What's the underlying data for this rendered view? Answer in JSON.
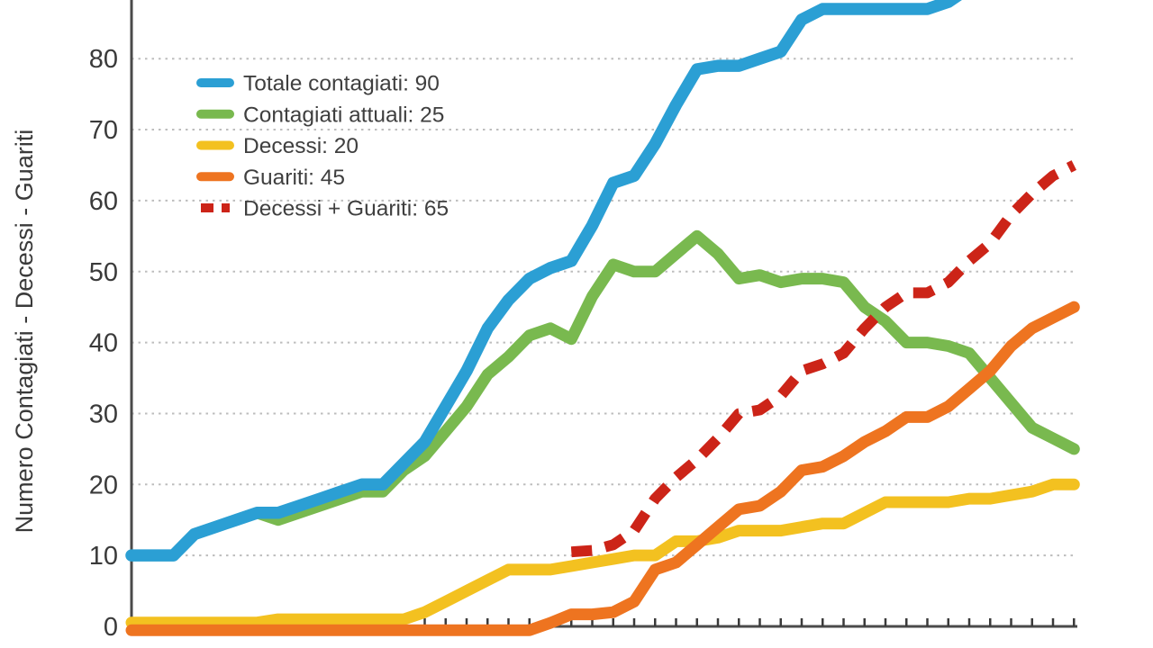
{
  "page": {
    "background": "#ffffff",
    "text_color": "#3a3a3a",
    "axis_color": "#4a4a4a",
    "grid_color": "#bdbdbd"
  },
  "chart_data": {
    "type": "line",
    "title": "",
    "xlabel": "",
    "ylabel": "Numero Contagiati - Decessi - Guariti",
    "ylim": [
      0,
      90
    ],
    "y_ticks": [
      0,
      10,
      20,
      30,
      40,
      50,
      60,
      70,
      80
    ],
    "grid": "horizontal-dotted",
    "legend_position": "upper-left",
    "x_axis": {
      "tick_count": 46,
      "labels_visible": false,
      "description": "46 daily data points; x tick labels are cropped out of the screenshot"
    },
    "series": [
      {
        "name": "Totale contagiati",
        "legend_label": "Totale contagiati: 90",
        "color": "#2b9fd4",
        "style": "solid",
        "final_value": 90,
        "values": [
          10,
          10,
          10,
          13,
          14,
          15,
          16,
          16,
          17,
          18,
          19,
          20,
          20,
          23,
          26,
          31,
          36,
          42,
          46,
          49,
          50.5,
          51.5,
          56.5,
          62.5,
          63.5,
          68,
          73.5,
          78.5,
          79,
          79,
          80,
          81,
          85.5,
          87,
          87,
          87,
          87,
          87,
          87,
          88,
          90,
          90,
          90,
          90,
          90,
          90
        ]
      },
      {
        "name": "Contagiati attuali",
        "legend_label": "Contagiati attuali: 25",
        "color": "#79b94f",
        "style": "solid",
        "final_value": 25,
        "values": [
          10,
          10,
          10,
          13,
          14,
          15,
          16,
          15,
          16,
          17,
          18,
          19,
          19,
          22,
          24,
          27.5,
          31,
          35.5,
          38,
          41,
          42,
          40.5,
          46.5,
          51,
          50,
          50,
          52.5,
          55,
          52.5,
          49,
          49.5,
          48.5,
          49,
          49,
          48.5,
          45,
          43,
          40,
          40,
          39.5,
          38.5,
          35,
          31.5,
          28,
          26.5,
          25
        ]
      },
      {
        "name": "Decessi",
        "legend_label": "Decessi: 20",
        "color": "#f3c120",
        "style": "solid",
        "final_value": 20,
        "values": [
          0,
          0,
          0,
          0,
          0,
          0,
          0,
          1,
          1,
          1,
          1,
          1,
          1,
          1,
          2,
          3.5,
          5,
          6.5,
          8,
          8,
          8,
          8.5,
          9,
          9.5,
          10,
          10,
          12,
          12,
          12.5,
          13.5,
          13.5,
          13.5,
          14,
          14.5,
          14.5,
          16,
          17.5,
          17.5,
          17.5,
          17.5,
          18,
          18,
          18.5,
          19,
          20,
          20
        ]
      },
      {
        "name": "Guariti",
        "legend_label": "Guariti: 45",
        "color": "#ee7420",
        "style": "solid",
        "final_value": 45,
        "values": [
          0,
          0,
          0,
          0,
          0,
          0,
          0,
          0,
          0,
          0,
          0,
          0,
          0,
          0,
          0,
          0,
          0,
          0,
          0,
          0,
          0.5,
          1.7,
          1.7,
          2,
          3.5,
          8,
          9,
          11.5,
          14,
          16.5,
          17,
          19,
          22,
          22.5,
          24,
          26,
          27.5,
          29.5,
          29.5,
          31,
          33.5,
          36,
          39.5,
          42,
          43.5,
          45
        ]
      },
      {
        "name": "Decessi + Guariti",
        "legend_label": "Decessi + Guariti: 65",
        "color": "#cc2418",
        "style": "dashed",
        "final_value": 65,
        "values": [
          null,
          null,
          null,
          null,
          null,
          null,
          null,
          null,
          null,
          null,
          null,
          null,
          null,
          null,
          null,
          null,
          null,
          null,
          null,
          null,
          null,
          10.5,
          10.7,
          11.5,
          13.5,
          18,
          21,
          23.5,
          26.5,
          30,
          30.5,
          32.5,
          36,
          37,
          38.5,
          42,
          45,
          47,
          47,
          48.5,
          51.5,
          54,
          58,
          61,
          63.5,
          65
        ]
      }
    ]
  }
}
